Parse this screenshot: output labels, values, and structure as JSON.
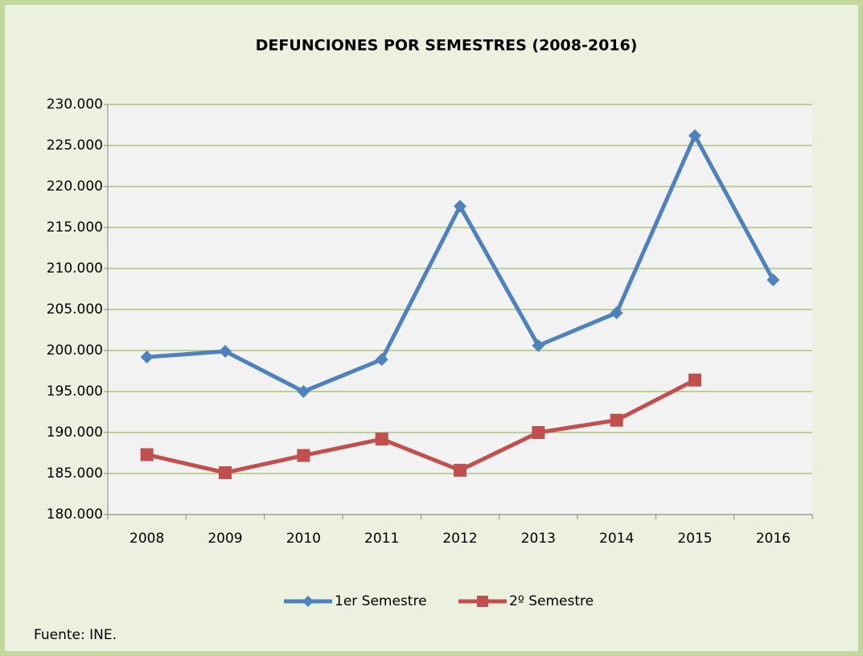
{
  "chart_data": {
    "type": "line",
    "title": "DEFUNCIONES POR SEMESTRES (2008-2016)",
    "categories": [
      "2008",
      "2009",
      "2010",
      "2011",
      "2012",
      "2013",
      "2014",
      "2015",
      "2016"
    ],
    "series": [
      {
        "name": "1er Semestre",
        "color": "#4f81bd",
        "marker": "diamond",
        "values": [
          199200,
          199900,
          195000,
          198900,
          217600,
          200600,
          204600,
          226200,
          208600
        ]
      },
      {
        "name": "2º Semestre",
        "color": "#c0504d",
        "marker": "square",
        "values": [
          187300,
          185100,
          187200,
          189200,
          185400,
          190000,
          191500,
          196400,
          null
        ]
      }
    ],
    "ylim": [
      180000,
      230000
    ],
    "yticks": [
      {
        "value": 180000,
        "label": "180.000"
      },
      {
        "value": 185000,
        "label": "185.000"
      },
      {
        "value": 190000,
        "label": "190.000"
      },
      {
        "value": 195000,
        "label": "195.000"
      },
      {
        "value": 200000,
        "label": "200.000"
      },
      {
        "value": 205000,
        "label": "205.000"
      },
      {
        "value": 210000,
        "label": "210.000"
      },
      {
        "value": 215000,
        "label": "215.000"
      },
      {
        "value": 220000,
        "label": "220.000"
      },
      {
        "value": 225000,
        "label": "225.000"
      },
      {
        "value": 230000,
        "label": "230.000"
      }
    ],
    "grid": true,
    "grid_color": "#9bbb59",
    "legend": "bottom",
    "source": "Fuente: INE."
  }
}
